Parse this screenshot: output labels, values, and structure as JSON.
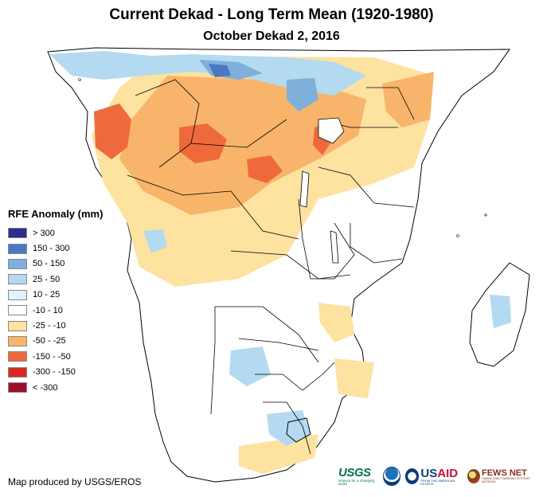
{
  "map": {
    "title": "Current Dekad - Long Term Mean (1920-1980)",
    "subtitle": "October Dekad 2, 2016",
    "region": "Southern and Central Africa",
    "credit": "Map produced by USGS/EROS"
  },
  "legend": {
    "title": "RFE Anomaly (mm)",
    "items": [
      {
        "label": "> 300",
        "color": "#2b2d8f"
      },
      {
        "label": "150 - 300",
        "color": "#4a78c2"
      },
      {
        "label": "50 - 150",
        "color": "#7fb0db"
      },
      {
        "label": "25 - 50",
        "color": "#b3daf0"
      },
      {
        "label": "10 - 25",
        "color": "#e2f2fa"
      },
      {
        "label": "-10 - 10",
        "color": "#ffffff"
      },
      {
        "label": "-25 - -10",
        "color": "#fde2a0"
      },
      {
        "label": "-50 - -25",
        "color": "#f8b46a"
      },
      {
        "label": "-150 - -50",
        "color": "#ee6a3c"
      },
      {
        "label": "-300 - -150",
        "color": "#d62a23"
      },
      {
        "label": "< -300",
        "color": "#9c0f2a"
      }
    ]
  },
  "logos": {
    "usgs": {
      "word": "USGS",
      "tagline": "science for a changing world"
    },
    "usaid": {
      "word_a": "US",
      "word_b": "AID",
      "tagline": "FROM THE AMERICAN PEOPLE"
    },
    "fews": {
      "word": "FEWS NET",
      "tagline": "FAMINE EARLY WARNING SYSTEMS NETWORK"
    }
  }
}
